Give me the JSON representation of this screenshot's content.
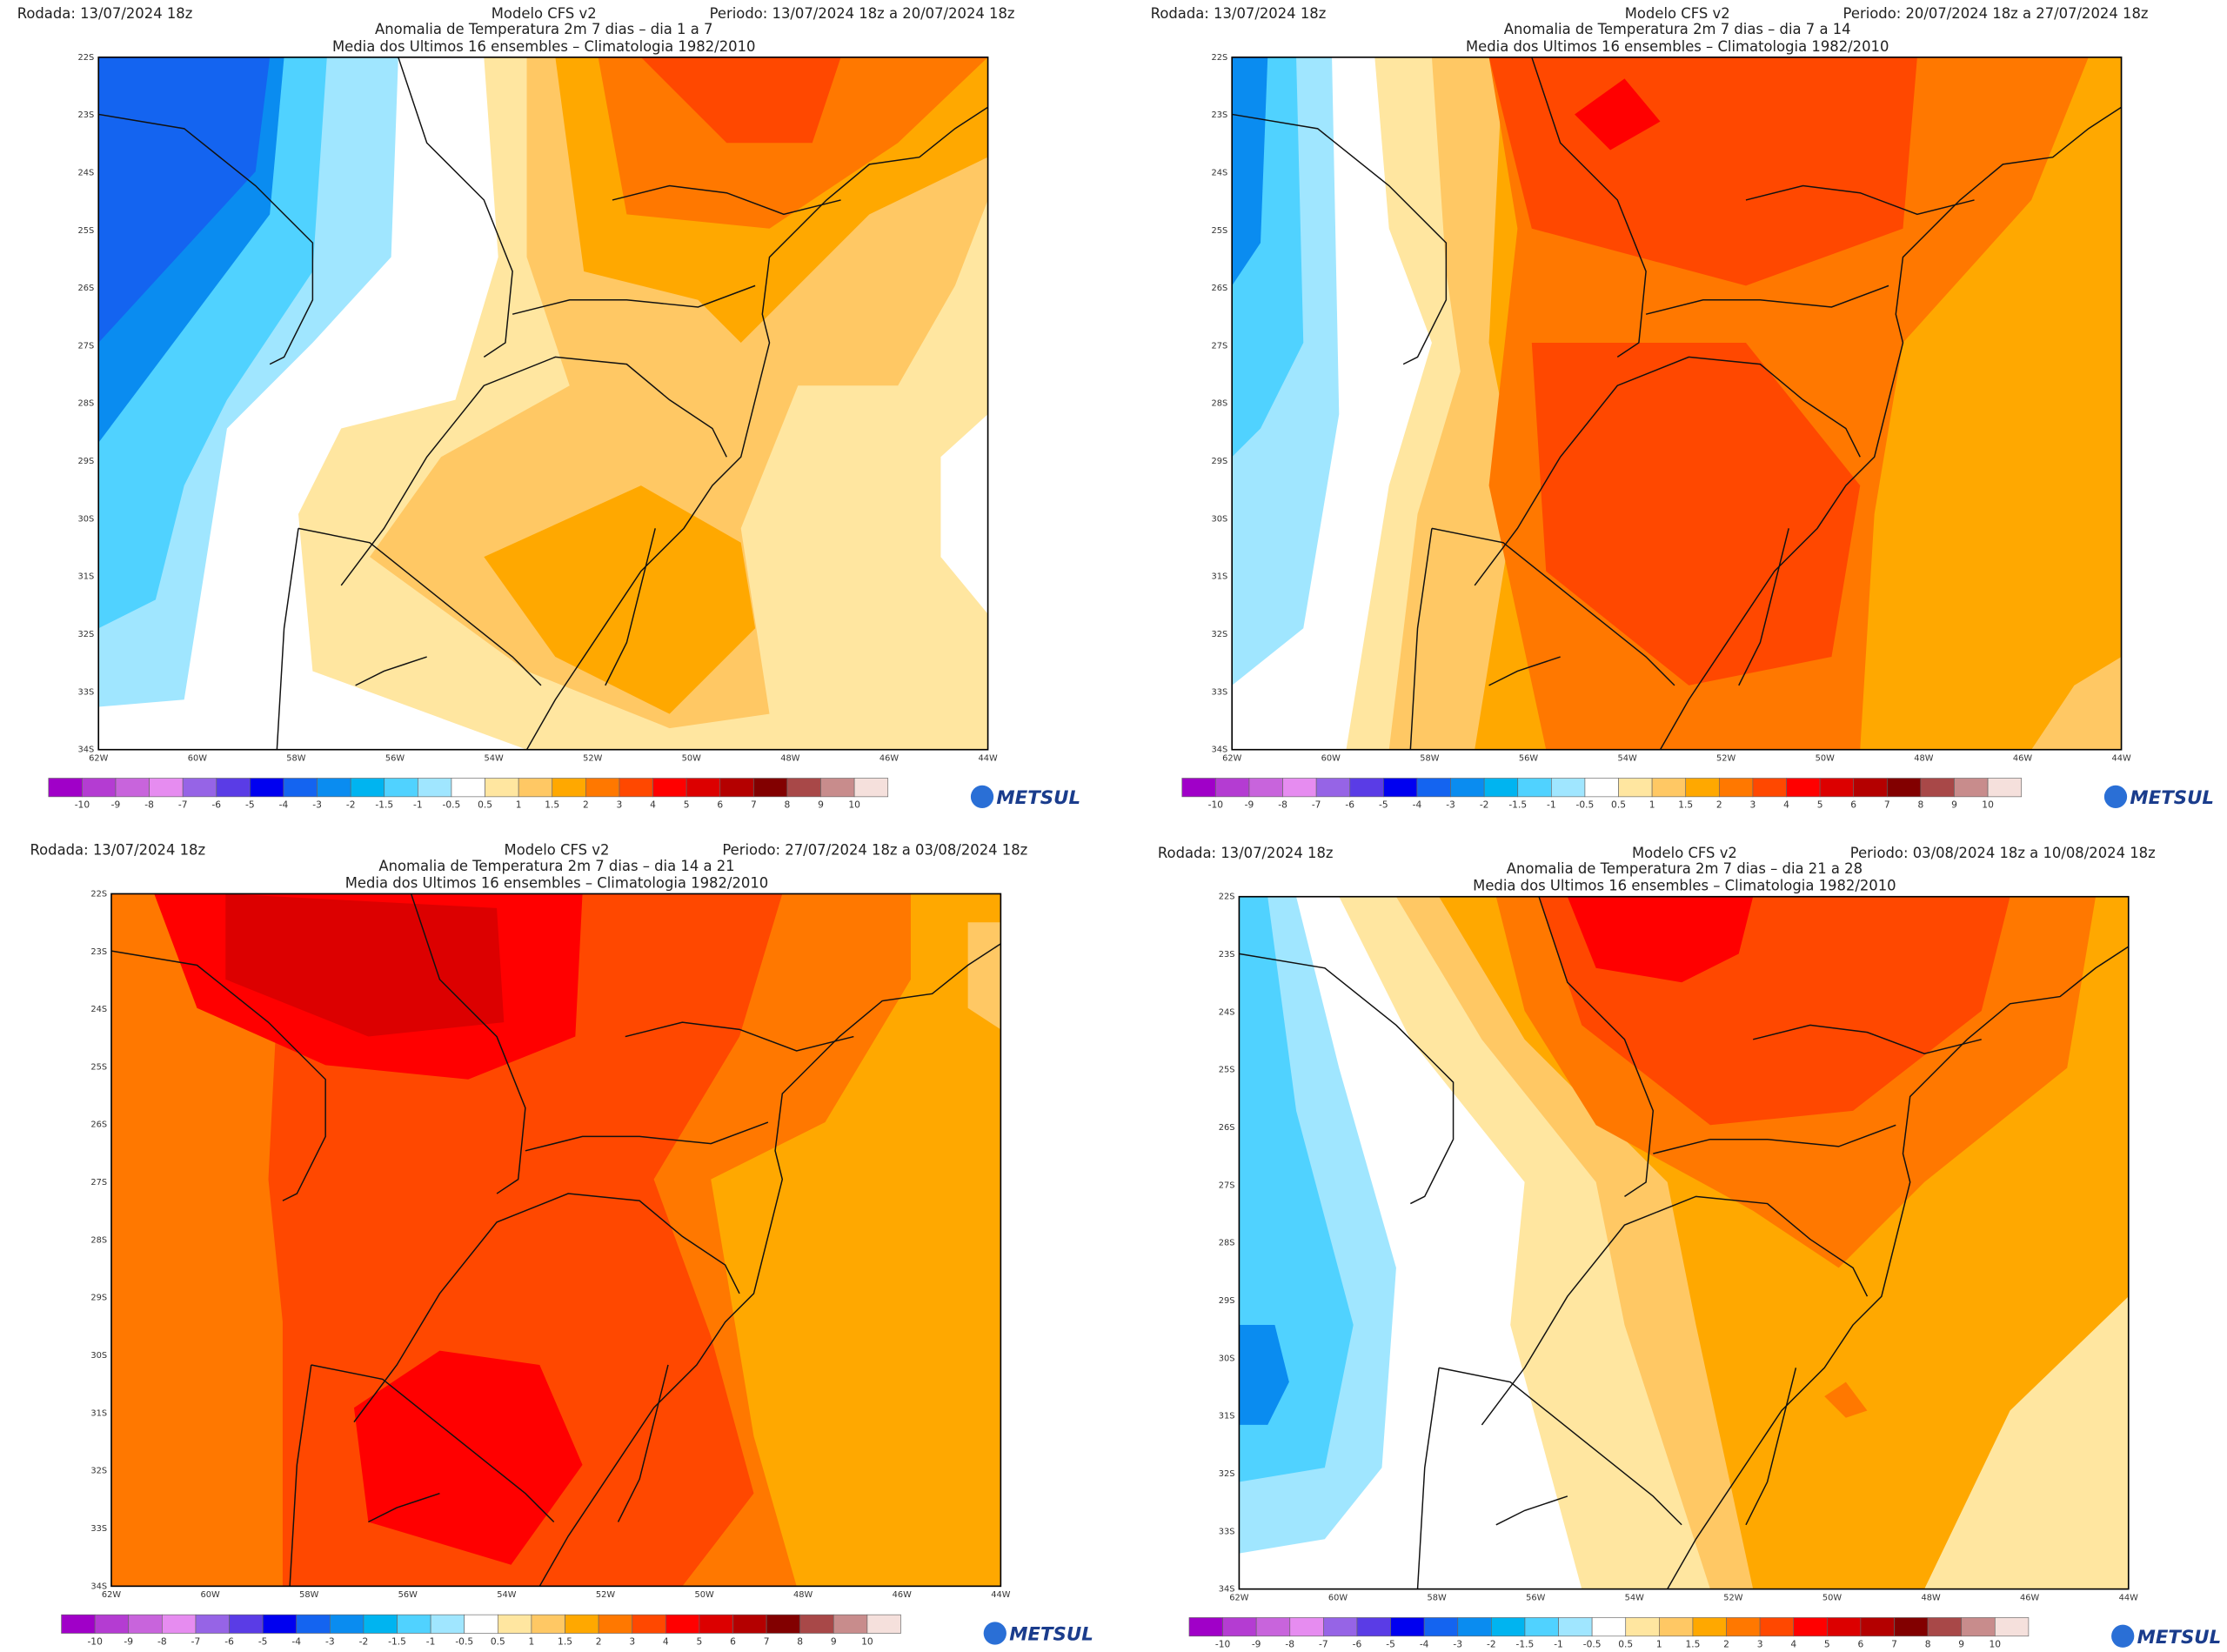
{
  "panels": [
    {
      "rodada": "Rodada: 13/07/2024 18z",
      "modelo": "Modelo CFS v2",
      "periodo": "Periodo: 13/07/2024 18z a 20/07/2024 18z",
      "subtitle1": "Anomalia de Temperatura 2m 7 dias – dia 1 a 7",
      "subtitle2": "Media dos Ultimos 16 ensembles – Climatologia 1982/2010"
    },
    {
      "rodada": "Rodada: 13/07/2024 18z",
      "modelo": "Modelo CFS v2",
      "periodo": "Periodo: 20/07/2024 18z a 27/07/2024 18z",
      "subtitle1": "Anomalia de Temperatura 2m 7 dias – dia 7 a 14",
      "subtitle2": "Media dos Ultimos 16 ensembles – Climatologia 1982/2010"
    },
    {
      "rodada": "Rodada: 13/07/2024 18z",
      "modelo": "Modelo CFS v2",
      "periodo": "Periodo: 27/07/2024 18z a 03/08/2024 18z",
      "subtitle1": "Anomalia de Temperatura 2m 7 dias – dia 14 a 21",
      "subtitle2": "Media dos Ultimos 16 ensembles – Climatologia 1982/2010"
    },
    {
      "rodada": "Rodada: 13/07/2024 18z",
      "modelo": "Modelo CFS v2",
      "periodo": "Periodo: 03/08/2024 18z a 10/08/2024 18z",
      "subtitle1": "Anomalia de Temperatura 2m 7 dias – dia 21 a 28",
      "subtitle2": "Media dos Ultimos 16 ensembles – Climatologia 1982/2010"
    }
  ],
  "lat_labels": [
    "22S",
    "23S",
    "24S",
    "25S",
    "26S",
    "27S",
    "28S",
    "29S",
    "30S",
    "31S",
    "32S",
    "33S",
    "34S"
  ],
  "lon_labels": [
    "62W",
    "60W",
    "58W",
    "56W",
    "54W",
    "52W",
    "50W",
    "48W",
    "46W",
    "44W"
  ],
  "colorbar": {
    "labels": [
      -10,
      -9,
      -8,
      -7,
      -6,
      -5,
      -4,
      -3,
      -2,
      -1.5,
      -1,
      -0.5,
      0.5,
      1,
      1.5,
      2,
      3,
      4,
      5,
      6,
      7,
      8,
      9,
      10
    ],
    "colors": [
      "#a000c8",
      "#b43cd2",
      "#c864dc",
      "#e68cf0",
      "#9664e6",
      "#5a3ce6",
      "#0000f0",
      "#1464f0",
      "#0a8cf0",
      "#00b4f0",
      "#50d2ff",
      "#a0e6ff",
      "#ffffff",
      "#ffe6a0",
      "#ffc864",
      "#ffa800",
      "#ff7800",
      "#ff4800",
      "#ff0000",
      "#dc0000",
      "#b40000",
      "#820000",
      "#a84848",
      "#c88c8c",
      "#f5e0dc"
    ]
  },
  "logo": "METSUL"
}
